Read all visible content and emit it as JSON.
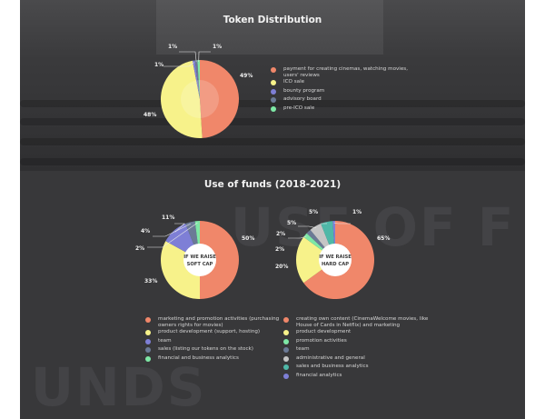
{
  "section1": {
    "title": "Token Distribution",
    "chart_data": {
      "type": "pie",
      "title": "Token Distribution",
      "categories": [
        "payment for creating cinemas, watching movies, users' reviews",
        "ICO sale",
        "bounty program",
        "advisory board",
        "pre-ICO sale"
      ],
      "values": [
        49,
        48,
        1,
        1,
        1
      ],
      "colors": [
        "#f0876a",
        "#f7f28a",
        "#7e7fd6",
        "#6b7a96",
        "#7ee8a6"
      ],
      "labels": [
        "49%",
        "48%",
        "1%",
        "1%",
        "1%"
      ]
    }
  },
  "section2": {
    "title": "Use of funds (2018-2021)",
    "soft": {
      "center_label": [
        "IF WE RAISE",
        "SOFT CAP"
      ],
      "chart_data": {
        "type": "pie",
        "categories": [
          "marketing and promotion activities (purchasing owners rights for movies)",
          "product development (support, hosting)",
          "team",
          "sales (listing our tokens on the stock)",
          "financial and business analytics"
        ],
        "values": [
          50,
          33,
          11,
          4,
          2
        ],
        "colors": [
          "#f0876a",
          "#f7f28a",
          "#7e7fd6",
          "#6b7a96",
          "#7ee8a6"
        ],
        "labels": [
          "50%",
          "33%",
          "11%",
          "4%",
          "2%"
        ]
      }
    },
    "hard": {
      "center_label": [
        "IF WE RAISE",
        "HARD CAP"
      ],
      "chart_data": {
        "type": "pie",
        "categories": [
          "creating own content (CinemaWelcome movies, like House of Cards in Netflix) and marketing",
          "product development",
          "promotion activities",
          "team",
          "administrative and general",
          "sales and business analytics",
          "financial analytics"
        ],
        "values": [
          65,
          20,
          2,
          2,
          5,
          5,
          1
        ],
        "colors": [
          "#f0876a",
          "#f7f28a",
          "#7ee8a6",
          "#6b7a96",
          "#c5c5c5",
          "#4fb8a8",
          "#7e7fd6"
        ],
        "labels": [
          "65%",
          "20%",
          "2%",
          "2%",
          "5%",
          "5%",
          "1%"
        ]
      }
    }
  },
  "background": {
    "bigword_1": "USE OF F",
    "bigword_2": "UNDS"
  }
}
